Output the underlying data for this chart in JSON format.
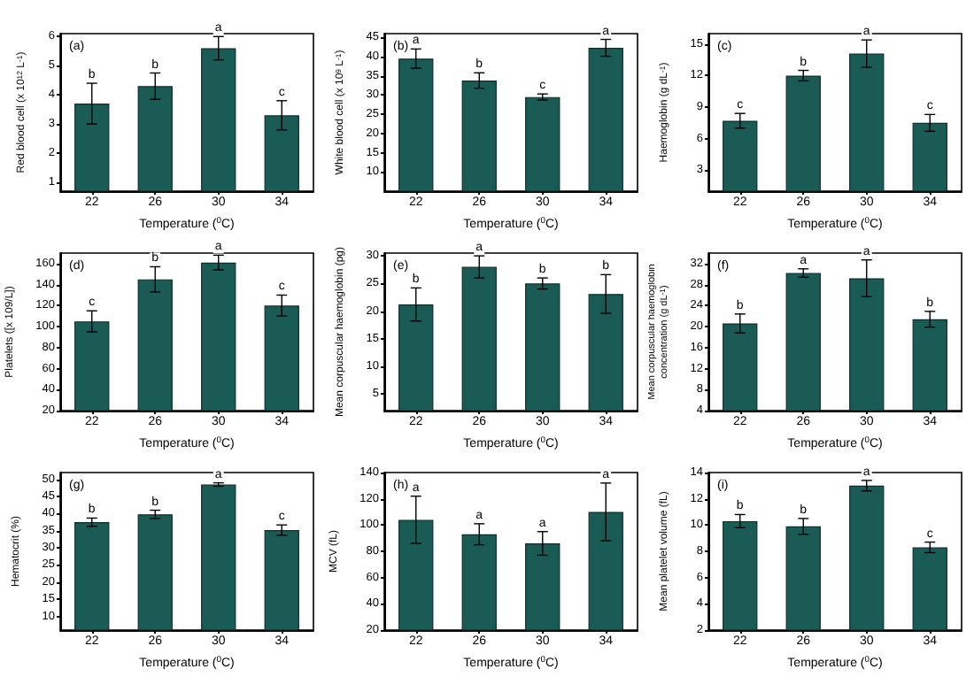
{
  "chart_data": [
    {
      "type": "bar",
      "categories": [
        "22",
        "26",
        "30",
        "34"
      ],
      "values": [
        3.7,
        4.3,
        5.6,
        3.3
      ],
      "errors": [
        0.7,
        0.45,
        0.4,
        0.5
      ],
      "color": "#1a5c55",
      "ylim": [
        0.7,
        6.1
      ],
      "yticks": [
        1,
        2,
        3,
        4,
        5,
        6
      ],
      "xlabel": "Temperature ($^{0}$C)",
      "ylabel": "Red blood cell (x 10$^{12}$ L$^{-1}$)",
      "annotations": [
        "(a)",
        {
          "text": "b",
          "x": "22",
          "y": 4.4
        },
        {
          "text": "b",
          "x": "26",
          "y": 4.75
        },
        {
          "text": "a",
          "x": "30",
          "y": 6.0
        },
        {
          "text": "c",
          "x": "34",
          "y": 3.8
        }
      ]
    },
    {
      "type": "bar",
      "categories": [
        "22",
        "26",
        "30",
        "34"
      ],
      "values": [
        39.5,
        33.8,
        29.5,
        42.3
      ],
      "errors": [
        2.5,
        2,
        0.8,
        2.2
      ],
      "color": "#1a5c55",
      "ylim": [
        5,
        46
      ],
      "yticks": [
        10,
        15,
        20,
        25,
        30,
        35,
        40,
        45
      ],
      "xlabel": "Temperature ($^{0}$C)",
      "ylabel": "White blood cell (x 10$^{9}$ L$^{-1}$)",
      "annotations": [
        "(b)",
        {
          "text": "a",
          "x": "22",
          "y": 42
        },
        {
          "text": "b",
          "x": "26",
          "y": 35.8
        },
        {
          "text": "c",
          "x": "30",
          "y": 30.3
        },
        {
          "text": "a",
          "x": "34",
          "y": 44.5
        }
      ]
    },
    {
      "type": "bar",
      "categories": [
        "22",
        "26",
        "30",
        "34"
      ],
      "values": [
        7.7,
        12,
        14.1,
        7.5
      ],
      "errors": [
        0.7,
        0.5,
        1.3,
        0.8
      ],
      "color": "#1a5c55",
      "ylim": [
        1,
        16
      ],
      "yticks": [
        3,
        6,
        9,
        12,
        15
      ],
      "xlabel": "Temperature ($^{0}$C)",
      "ylabel": "Haemoglobin (g dL$^{-1}$)",
      "annotations": [
        "(c)",
        {
          "text": "c",
          "x": "22",
          "y": 8.4
        },
        {
          "text": "b",
          "x": "26",
          "y": 12.5
        },
        {
          "text": "a",
          "x": "30",
          "y": 15.4
        },
        {
          "text": "c",
          "x": "34",
          "y": 8.3
        }
      ]
    },
    {
      "type": "bar",
      "categories": [
        "22",
        "26",
        "30",
        "34"
      ],
      "values": [
        105,
        145,
        161,
        120
      ],
      "errors": [
        10,
        12,
        7,
        10
      ],
      "color": "#1a5c55",
      "ylim": [
        20,
        170
      ],
      "yticks": [
        20,
        40,
        60,
        80,
        100,
        120,
        140,
        160
      ],
      "xlabel": "Temperature ($^{0}$C)",
      "ylabel": "Platelets ([x 109/L])",
      "annotations": [
        "(d)",
        {
          "text": "c",
          "x": "22",
          "y": 115
        },
        {
          "text": "b",
          "x": "26",
          "y": 157
        },
        {
          "text": "a",
          "x": "30",
          "y": 168
        },
        {
          "text": "c",
          "x": "34",
          "y": 130
        }
      ]
    },
    {
      "type": "bar",
      "categories": [
        "22",
        "26",
        "30",
        "34"
      ],
      "values": [
        21.2,
        28,
        25,
        23.1
      ],
      "errors": [
        3,
        2,
        1,
        3.5
      ],
      "color": "#1a5c55",
      "ylim": [
        2,
        30.5
      ],
      "yticks": [
        5,
        10,
        15,
        20,
        25,
        30
      ],
      "xlabel": "Temperature ($^{0}$C)",
      "ylabel": "Mean corpuscular haemoglobin (pg)",
      "annotations": [
        "(e)",
        {
          "text": "b",
          "x": "22",
          "y": 24.2
        },
        {
          "text": "a",
          "x": "26",
          "y": 30
        },
        {
          "text": "b",
          "x": "30",
          "y": 26
        },
        {
          "text": "b",
          "x": "34",
          "y": 26.6
        }
      ]
    },
    {
      "type": "bar",
      "categories": [
        "22",
        "26",
        "30",
        "34"
      ],
      "values": [
        20.6,
        30.2,
        29.2,
        21.4
      ],
      "errors": [
        1.8,
        0.8,
        3.5,
        1.5
      ],
      "color": "#1a5c55",
      "ylim": [
        4,
        34
      ],
      "yticks": [
        4,
        8,
        12,
        16,
        20,
        24,
        28,
        32
      ],
      "xlabel": "Temperature ($^{0}$C)",
      "ylabel": "Mean corpuscular haemoglobin concentration (g dL$^{-1}$)",
      "annotations": [
        "(f)",
        {
          "text": "b",
          "x": "22",
          "y": 22.4
        },
        {
          "text": "a",
          "x": "26",
          "y": 31
        },
        {
          "text": "a",
          "x": "30",
          "y": 32.7
        },
        {
          "text": "b",
          "x": "34",
          "y": 22.9
        }
      ]
    },
    {
      "type": "bar",
      "categories": [
        "22",
        "26",
        "30",
        "34"
      ],
      "values": [
        37.5,
        39.8,
        48.5,
        35.2
      ],
      "errors": [
        1.2,
        1.2,
        0.5,
        1.5
      ],
      "color": "#1a5c55",
      "ylim": [
        6,
        52
      ],
      "yticks": [
        10,
        15,
        20,
        25,
        30,
        35,
        40,
        45,
        50
      ],
      "xlabel": "Temperature ($^{0}$C)",
      "ylabel": "Hematocrit (%)",
      "annotations": [
        "(g)",
        {
          "text": "b",
          "x": "22",
          "y": 38.7
        },
        {
          "text": "b",
          "x": "26",
          "y": 41
        },
        {
          "text": "a",
          "x": "30",
          "y": 49
        },
        {
          "text": "c",
          "x": "34",
          "y": 36.7
        }
      ]
    },
    {
      "type": "bar",
      "categories": [
        "22",
        "26",
        "30",
        "34"
      ],
      "values": [
        104,
        93,
        86,
        110
      ],
      "errors": [
        18,
        8,
        9,
        22
      ],
      "color": "#1a5c55",
      "ylim": [
        20,
        140
      ],
      "yticks": [
        20,
        40,
        60,
        80,
        100,
        120,
        140
      ],
      "xlabel": "Temperature ($^{0}$C)",
      "ylabel": "MCV (fL)",
      "annotations": [
        "(h)",
        {
          "text": "a",
          "x": "22",
          "y": 122
        },
        {
          "text": "a",
          "x": "26",
          "y": 101
        },
        {
          "text": "a",
          "x": "30",
          "y": 95
        },
        {
          "text": "a",
          "x": "34",
          "y": 132
        }
      ]
    },
    {
      "type": "bar",
      "categories": [
        "22",
        "26",
        "30",
        "34"
      ],
      "values": [
        10.3,
        9.9,
        13,
        8.3
      ],
      "errors": [
        0.5,
        0.6,
        0.4,
        0.4
      ],
      "color": "#1a5c55",
      "ylim": [
        2,
        14
      ],
      "yticks": [
        2,
        4,
        6,
        8,
        10,
        12,
        14
      ],
      "xlabel": "Temperature ($^{0}$C)",
      "ylabel": "Mean platelet volume (fL)",
      "annotations": [
        "(i)",
        {
          "text": "b",
          "x": "22",
          "y": 10.8
        },
        {
          "text": "b",
          "x": "26",
          "y": 10.5
        },
        {
          "text": "a",
          "x": "30",
          "y": 13.4
        },
        {
          "text": "c",
          "x": "34",
          "y": 8.7
        }
      ]
    }
  ]
}
